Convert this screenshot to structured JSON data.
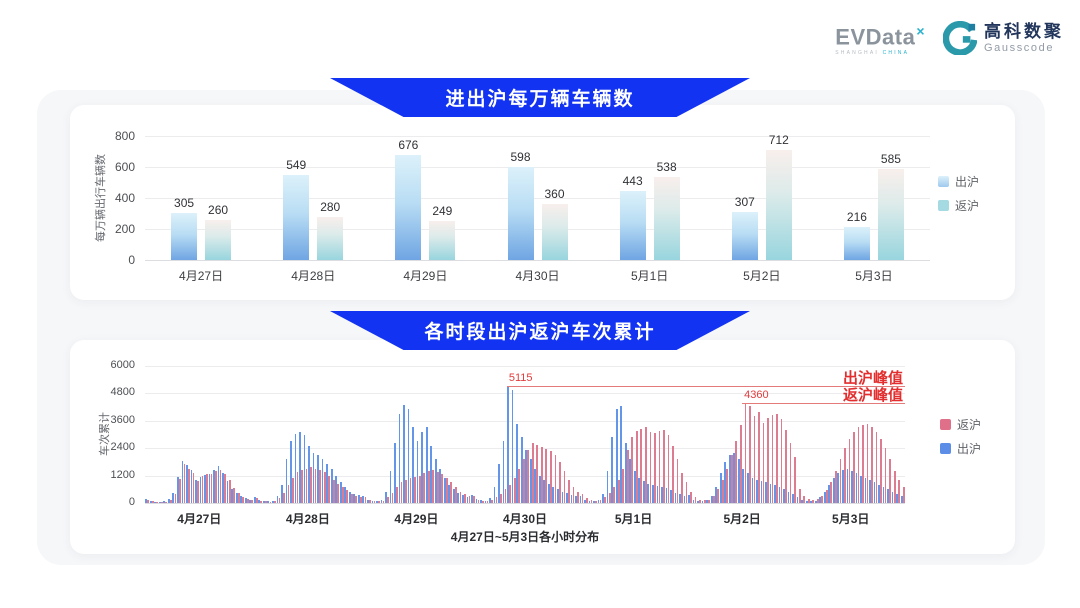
{
  "header": {
    "evdata": {
      "wordmark": "EVData",
      "superscript": "×",
      "tagline_left": "SHANGHAI",
      "tagline_right": "CHINA"
    },
    "gausscode": {
      "cn": "高科数聚",
      "en": "Gausscode"
    }
  },
  "colors": {
    "banner_blue": "#1333f2",
    "exit_gradient_top": "#dcf1fa",
    "exit_gradient_bottom": "#6fa5e3",
    "return_gradient_top": "#f8efec",
    "return_gradient_bottom": "#98d5de",
    "hour_exit_blue": "#6396e8",
    "hour_return_pink": "#dd7b91",
    "legend_exit_blue": "#9fc8ee",
    "legend_return_teal": "#a5dae2",
    "legend_pink": "#e0708a",
    "legend_blue": "#5c8ee8",
    "annotation_red": "#e23c3c"
  },
  "chart_data": [
    {
      "type": "bar",
      "title": "进出沪每万辆车辆数",
      "ylabel": "每万辆出行车辆数",
      "xlabel": "",
      "categories": [
        "4月27日",
        "4月28日",
        "4月29日",
        "4月30日",
        "5月1日",
        "5月2日",
        "5月3日"
      ],
      "series": [
        {
          "name": "出沪",
          "values": [
            305,
            549,
            676,
            598,
            443,
            307,
            216
          ]
        },
        {
          "name": "返沪",
          "values": [
            260,
            280,
            249,
            360,
            538,
            712,
            585
          ]
        }
      ],
      "yticks": [
        0,
        200,
        400,
        600,
        800
      ],
      "ylim": [
        0,
        800
      ],
      "grid": true,
      "legend_position": "right"
    },
    {
      "type": "bar",
      "title": "各时段出沪返沪车次累计",
      "ylabel": "车次累计",
      "xlabel": "4月27日~5月3日各小时分布",
      "categories": [
        "4月27日",
        "4月28日",
        "4月29日",
        "4月30日",
        "5月1日",
        "5月2日",
        "5月3日"
      ],
      "hours_per_day": 24,
      "yticks": [
        0,
        1200,
        2400,
        3600,
        4800,
        6000
      ],
      "ylim": [
        0,
        6000
      ],
      "grid": true,
      "legend_position": "right",
      "legend_order": [
        "返沪",
        "出沪"
      ],
      "series": [
        {
          "name": "出沪",
          "values": [
            180,
            90,
            60,
            50,
            70,
            160,
            420,
            1150,
            1820,
            1650,
            1460,
            1010,
            1150,
            1230,
            1260,
            1420,
            1600,
            1310,
            960,
            610,
            450,
            300,
            200,
            150,
            250,
            120,
            80,
            70,
            90,
            300,
            800,
            1900,
            2700,
            3000,
            3100,
            2950,
            2500,
            2200,
            2100,
            1900,
            1700,
            1500,
            1200,
            900,
            700,
            500,
            400,
            350,
            300,
            150,
            100,
            90,
            150,
            500,
            1400,
            2600,
            3900,
            4280,
            4100,
            3300,
            2700,
            3100,
            3300,
            2500,
            1900,
            1500,
            1100,
            800,
            600,
            450,
            350,
            280,
            350,
            180,
            120,
            100,
            200,
            700,
            1700,
            2700,
            5115,
            4950,
            3450,
            2900,
            2300,
            1900,
            1500,
            1200,
            1000,
            850,
            700,
            600,
            500,
            420,
            350,
            300,
            300,
            150,
            100,
            90,
            150,
            400,
            1400,
            2900,
            4100,
            4250,
            2600,
            1900,
            1400,
            1100,
            950,
            850,
            800,
            750,
            700,
            650,
            550,
            450,
            380,
            320,
            350,
            150,
            100,
            90,
            120,
            300,
            700,
            1300,
            1800,
            2100,
            2200,
            1900,
            1500,
            1300,
            1100,
            1000,
            950,
            900,
            850,
            800,
            700,
            600,
            500,
            400,
            250,
            120,
            80,
            70,
            100,
            250,
            500,
            800,
            1100,
            1300,
            1450,
            1500,
            1400,
            1300,
            1200,
            1100,
            1000,
            900,
            800,
            700,
            600,
            500,
            400,
            300
          ]
        },
        {
          "name": "返沪",
          "values": [
            150,
            80,
            50,
            45,
            60,
            130,
            380,
            1050,
            1700,
            1480,
            1300,
            950,
            1180,
            1250,
            1280,
            1380,
            1450,
            1260,
            1000,
            640,
            420,
            280,
            190,
            140,
            200,
            100,
            70,
            60,
            80,
            200,
            450,
            800,
            1100,
            1350,
            1450,
            1500,
            1550,
            1500,
            1450,
            1350,
            1200,
            1000,
            850,
            700,
            550,
            400,
            320,
            260,
            250,
            120,
            80,
            70,
            100,
            250,
            450,
            700,
            900,
            1000,
            1100,
            1150,
            1200,
            1300,
            1400,
            1450,
            1350,
            1250,
            1100,
            900,
            700,
            500,
            380,
            300,
            300,
            150,
            100,
            90,
            120,
            250,
            400,
            600,
            800,
            1100,
            1500,
            1900,
            2300,
            2600,
            2550,
            2450,
            2350,
            2250,
            2100,
            1800,
            1400,
            1000,
            700,
            500,
            400,
            200,
            120,
            100,
            130,
            250,
            450,
            700,
            1000,
            1500,
            2300,
            2900,
            3150,
            3250,
            3300,
            3100,
            3050,
            3150,
            3200,
            2950,
            2500,
            1900,
            1300,
            900,
            500,
            250,
            150,
            120,
            150,
            300,
            600,
            1000,
            1500,
            2100,
            2700,
            3400,
            4360,
            4250,
            3800,
            3950,
            3500,
            3700,
            3850,
            3900,
            3650,
            3200,
            2600,
            2000,
            600,
            300,
            180,
            150,
            180,
            300,
            550,
            900,
            1400,
            1900,
            2400,
            2800,
            3100,
            3300,
            3400,
            3450,
            3300,
            3100,
            2800,
            2400,
            1900,
            1400,
            1000,
            700
          ]
        }
      ],
      "annotations": [
        {
          "label": "出沪峰值",
          "value": 5115,
          "value_text": "5115",
          "series": "出沪",
          "slot_index": 80
        },
        {
          "label": "返沪峰值",
          "value": 4360,
          "value_text": "4360",
          "series": "返沪",
          "slot_index": 132
        }
      ]
    }
  ]
}
